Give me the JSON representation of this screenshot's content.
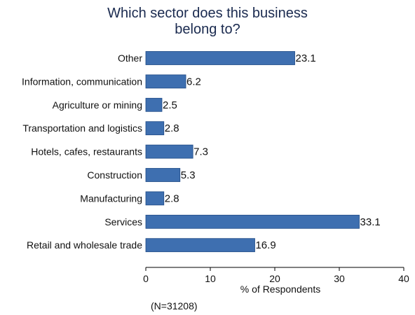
{
  "chart_data": {
    "type": "bar",
    "orientation": "horizontal",
    "title_lines": [
      "Which sector does this business",
      "belong to?"
    ],
    "categories": [
      "Other",
      "Information, communication",
      "Agriculture or mining",
      "Transportation and logistics",
      "Hotels, cafes, restaurants",
      "Construction",
      "Manufacturing",
      "Services",
      "Retail and wholesale trade"
    ],
    "values": [
      23.1,
      6.2,
      2.5,
      2.8,
      7.3,
      5.3,
      2.8,
      33.1,
      16.9
    ],
    "value_labels": [
      "23.1",
      "6.2",
      "2.5",
      "2.8",
      "7.3",
      "5.3",
      "2.8",
      "33.1",
      "16.9"
    ],
    "xlabel": "% of Respondents",
    "ylabel": "",
    "xlim": [
      0,
      40
    ],
    "xticks": [
      0,
      10,
      20,
      30,
      40
    ],
    "grid": false,
    "bar_color": "#3e6fb0",
    "bar_edge_color": "#1f4a85",
    "note": "(N=31208)"
  }
}
